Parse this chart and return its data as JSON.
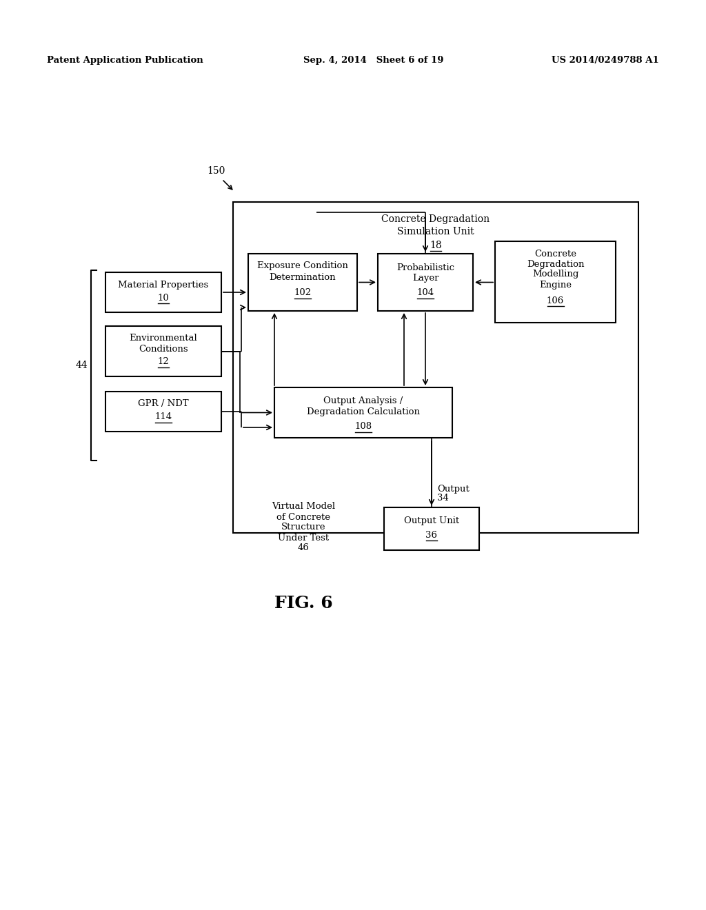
{
  "bg_color": "#ffffff",
  "header_left": "Patent Application Publication",
  "header_mid": "Sep. 4, 2014   Sheet 6 of 19",
  "header_right": "US 2014/0249788 A1",
  "fig_label": "FIG. 6",
  "label_150": "150",
  "label_44": "44",
  "outer_box_title_line1": "Concrete Degradation",
  "outer_box_title_line2": "Simulation Unit",
  "outer_box_title_num": "18",
  "box_mat_props_line1": "Material Properties",
  "box_mat_props_num": "10",
  "box_env_cond_line1": "Environmental",
  "box_env_cond_line2": "Conditions",
  "box_env_cond_num": "12",
  "box_gpr_line1": "GPR / NDT",
  "box_gpr_num": "114",
  "box_exp_line1": "Exposure Condition",
  "box_exp_line2": "Determination",
  "box_exp_num": "102",
  "box_prob_line1": "Probabilistic",
  "box_prob_line2": "Layer",
  "box_prob_num": "104",
  "box_cdme_line1": "Concrete",
  "box_cdme_line2": "Degradation",
  "box_cdme_line3": "Modelling",
  "box_cdme_line4": "Engine",
  "box_cdme_num": "106",
  "box_output_calc_line1": "Output Analysis /",
  "box_output_calc_line2": "Degradation Calculation",
  "box_output_calc_num": "108",
  "label_virtual_line1": "Virtual Model",
  "label_virtual_line2": "of Concrete",
  "label_virtual_line3": "Structure",
  "label_virtual_line4": "Under Test",
  "label_virtual_num": "46",
  "label_output": "Output",
  "label_output_num": "34",
  "box_output_unit_line1": "Output Unit",
  "box_output_unit_num": "36",
  "font_size_header": 9.5,
  "font_size_box": 9.5,
  "font_size_fig": 18,
  "font_size_label": 10
}
